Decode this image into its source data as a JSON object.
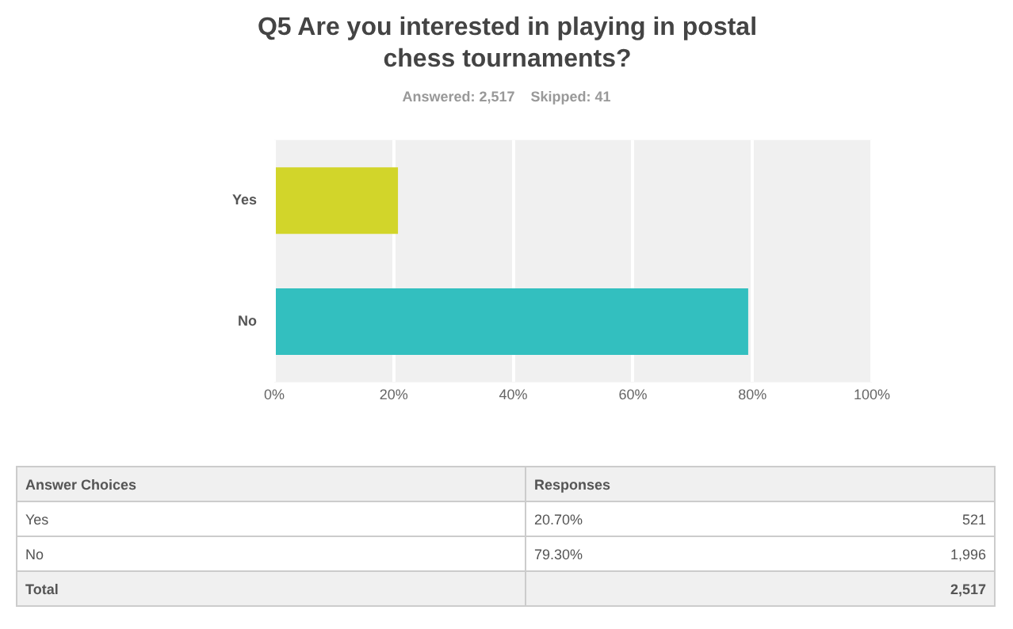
{
  "chart_data": {
    "type": "bar",
    "orientation": "horizontal",
    "title": "Q5 Are you interested in playing in postal chess tournaments?",
    "subtitle": "Answered: 2,517    Skipped: 41",
    "categories": [
      "Yes",
      "No"
    ],
    "values": [
      20.7,
      79.3
    ],
    "colors": [
      "#d2d52a",
      "#33bfbf"
    ],
    "xlim": [
      0,
      100
    ],
    "xticks": [
      {
        "value": 0,
        "label": "0%"
      },
      {
        "value": 20,
        "label": "20%"
      },
      {
        "value": 40,
        "label": "40%"
      },
      {
        "value": 60,
        "label": "60%"
      },
      {
        "value": 80,
        "label": "80%"
      },
      {
        "value": 100,
        "label": "100%"
      }
    ],
    "grid": "x",
    "annotations": [
      "Answer Choices",
      "Responses",
      "20.70%",
      "79.30%",
      "521",
      "1,996",
      "Total",
      "2,517"
    ]
  }
}
